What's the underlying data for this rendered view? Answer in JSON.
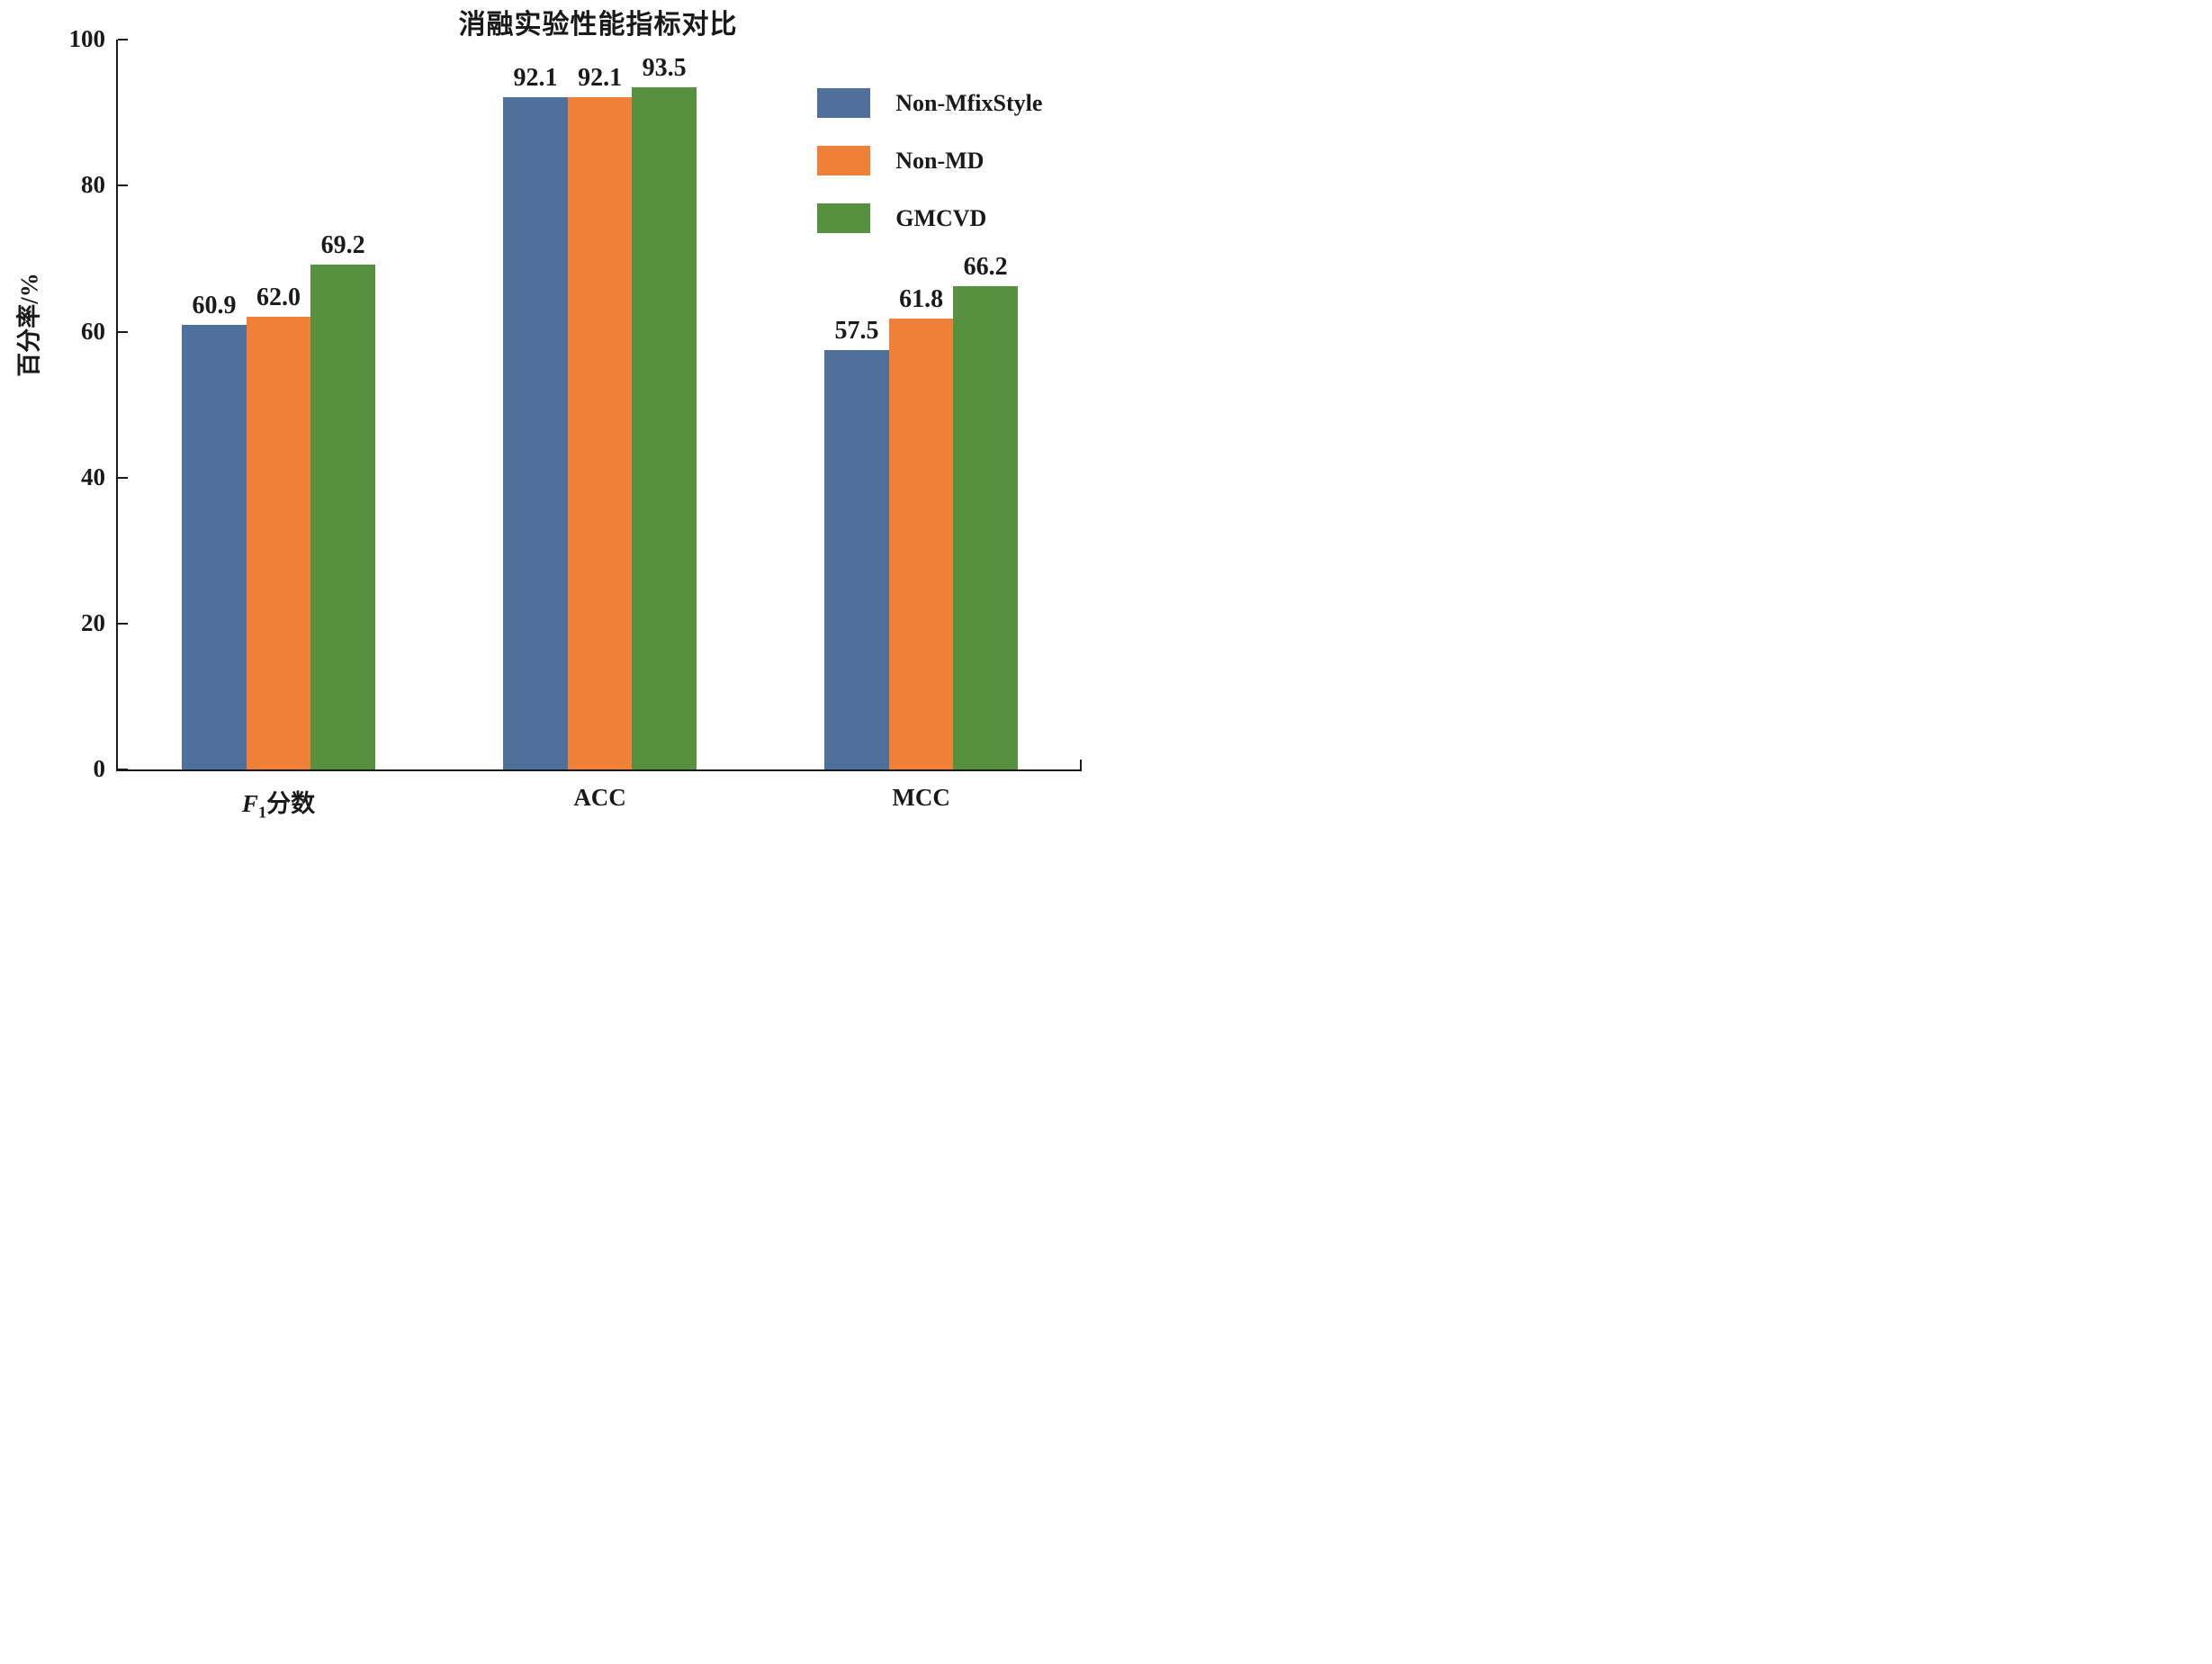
{
  "chart_data": {
    "type": "bar",
    "title": "消融实验性能指标对比",
    "ylabel": "百分率/%",
    "ylim": [
      0,
      100
    ],
    "yticks": [
      0,
      20,
      40,
      60,
      80,
      100
    ],
    "grid": false,
    "legend_position": "upper right inside",
    "axis_color": "#1a1a1a",
    "categories": [
      {
        "segments": [
          {
            "t": "F",
            "style": "italic"
          },
          {
            "t": "1",
            "style": "sub"
          },
          {
            "t": "分数",
            "style": "normal"
          }
        ]
      },
      {
        "segments": [
          {
            "t": "ACC",
            "style": "normal"
          }
        ]
      },
      {
        "segments": [
          {
            "t": "MCC",
            "style": "normal"
          }
        ]
      }
    ],
    "series": [
      {
        "name": "Non-MfixStyle",
        "color": "#4F709B",
        "values": [
          60.9,
          92.1,
          57.5
        ],
        "labels": [
          "60.9",
          "92.1",
          "57.5"
        ]
      },
      {
        "name": "Non-MD",
        "color": "#EF8038",
        "values": [
          62.0,
          92.1,
          61.8
        ],
        "labels": [
          "62.0",
          "92.1",
          "61.8"
        ]
      },
      {
        "name": "GMCVD",
        "color": "#55913E",
        "values": [
          69.2,
          93.5,
          66.2
        ],
        "labels": [
          "69.2",
          "93.5",
          "66.2"
        ]
      }
    ]
  }
}
